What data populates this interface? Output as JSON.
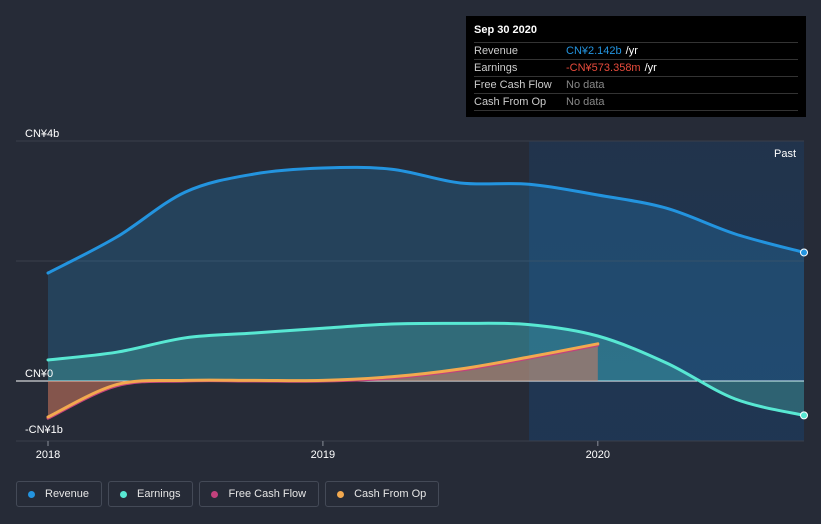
{
  "tooltip": {
    "date": "Sep 30 2020",
    "rows": [
      {
        "label": "Revenue",
        "value": "CN¥2.142b",
        "unit": "/yr",
        "color": "#2394df"
      },
      {
        "label": "Earnings",
        "value": "-CN¥573.358m",
        "unit": "/yr",
        "color": "#e84b3c"
      },
      {
        "label": "Free Cash Flow",
        "value": "No data",
        "unit": "",
        "color": "#888888"
      },
      {
        "label": "Cash From Op",
        "value": "No data",
        "unit": "",
        "color": "#888888"
      }
    ]
  },
  "legend": [
    {
      "label": "Revenue",
      "color": "#2394df"
    },
    {
      "label": "Earnings",
      "color": "#58e8d3"
    },
    {
      "label": "Free Cash Flow",
      "color": "#c2417c"
    },
    {
      "label": "Cash From Op",
      "color": "#f2a94f"
    }
  ],
  "chart_data": {
    "type": "area",
    "title": "",
    "xlabel": "",
    "ylabel": "",
    "ylim": [
      -1.0,
      4.0
    ],
    "y_ticks": [
      {
        "label": "CN¥4b",
        "value": 4.0
      },
      {
        "label": "CN¥0",
        "value": 0.0
      },
      {
        "label": "-CN¥1b",
        "value": -1.0
      }
    ],
    "x_ticks": [
      {
        "label": "2018",
        "value": 2018.0
      },
      {
        "label": "2019",
        "value": 2019.0
      },
      {
        "label": "2020",
        "value": 2020.0
      }
    ],
    "xlim": [
      2018.0,
      2020.75
    ],
    "past_label": "Past",
    "past_start": 2019.75,
    "series": [
      {
        "name": "Revenue",
        "color": "#2394df",
        "points": [
          [
            2018.0,
            1.8
          ],
          [
            2018.25,
            2.4
          ],
          [
            2018.5,
            3.15
          ],
          [
            2018.75,
            3.45
          ],
          [
            2019.0,
            3.55
          ],
          [
            2019.25,
            3.53
          ],
          [
            2019.5,
            3.3
          ],
          [
            2019.75,
            3.28
          ],
          [
            2020.0,
            3.1
          ],
          [
            2020.25,
            2.88
          ],
          [
            2020.5,
            2.45
          ],
          [
            2020.75,
            2.142
          ]
        ]
      },
      {
        "name": "Earnings",
        "color": "#58e8d3",
        "points": [
          [
            2018.0,
            0.35
          ],
          [
            2018.25,
            0.48
          ],
          [
            2018.5,
            0.72
          ],
          [
            2018.75,
            0.8
          ],
          [
            2019.0,
            0.88
          ],
          [
            2019.25,
            0.95
          ],
          [
            2019.5,
            0.96
          ],
          [
            2019.75,
            0.94
          ],
          [
            2020.0,
            0.75
          ],
          [
            2020.25,
            0.3
          ],
          [
            2020.5,
            -0.3
          ],
          [
            2020.75,
            -0.573
          ]
        ]
      },
      {
        "name": "Free Cash Flow",
        "color": "#c2417c",
        "points": [
          [
            2018.0,
            -0.62
          ],
          [
            2018.25,
            -0.08
          ],
          [
            2018.5,
            0.0
          ],
          [
            2018.75,
            0.0
          ],
          [
            2019.0,
            0.0
          ],
          [
            2019.25,
            0.05
          ],
          [
            2019.5,
            0.18
          ],
          [
            2019.75,
            0.38
          ],
          [
            2020.0,
            0.6
          ]
        ]
      },
      {
        "name": "Cash From Op",
        "color": "#f2a94f",
        "points": [
          [
            2018.0,
            -0.6
          ],
          [
            2018.25,
            -0.06
          ],
          [
            2018.5,
            0.01
          ],
          [
            2018.75,
            0.01
          ],
          [
            2019.0,
            0.01
          ],
          [
            2019.25,
            0.07
          ],
          [
            2019.5,
            0.2
          ],
          [
            2019.75,
            0.4
          ],
          [
            2020.0,
            0.62
          ]
        ]
      }
    ]
  }
}
